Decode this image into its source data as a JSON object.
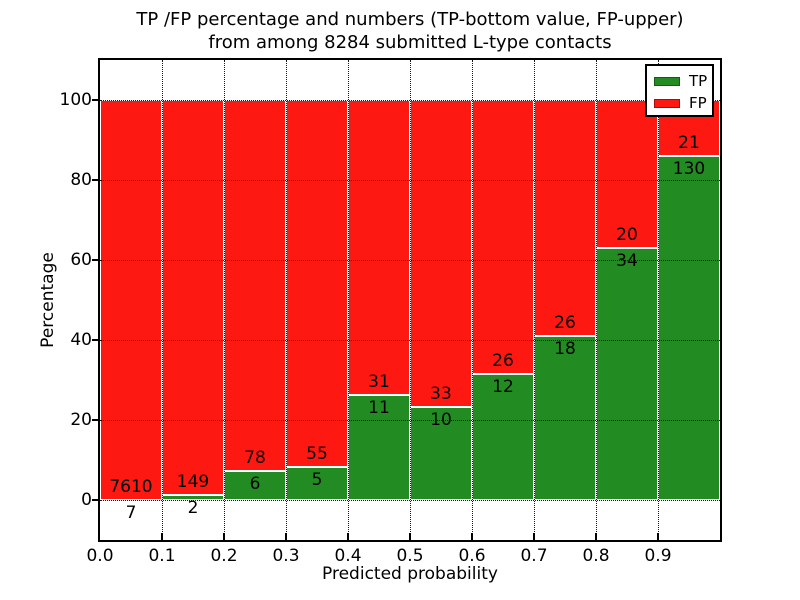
{
  "title": {
    "line1": "TP /FP percentage and numbers (TP-bottom value, FP-upper)",
    "line2": "from among 8284 submitted L-type contacts"
  },
  "axes": {
    "xlabel": "Predicted probability",
    "ylabel": "Percentage"
  },
  "legend": [
    {
      "label": "TP",
      "color": "#228b22"
    },
    {
      "label": "FP",
      "color": "#fd1812"
    }
  ],
  "colors": {
    "tp": "#228b22",
    "fp": "#fd1812",
    "grid": "#000000",
    "bar_edge": "#ffffff"
  },
  "chart_data": {
    "type": "bar",
    "stacked": true,
    "normalized": "percent_of_bin_total",
    "title": "TP /FP percentage and numbers (TP-bottom value, FP-upper) from among 8284 submitted L-type contacts",
    "xlabel": "Predicted probability",
    "ylabel": "Percentage",
    "total_contacts": 8284,
    "bin_edges": [
      0.0,
      0.1,
      0.2,
      0.3,
      0.4,
      0.5,
      0.6,
      0.7,
      0.8,
      0.9,
      1.0
    ],
    "x_tick_labels": [
      "0.0",
      "0.1",
      "0.2",
      "0.3",
      "0.4",
      "0.5",
      "0.6",
      "0.7",
      "0.8",
      "0.9"
    ],
    "y_ticks": [
      0,
      20,
      40,
      60,
      80,
      100
    ],
    "xlim": [
      0.0,
      1.0
    ],
    "ylim": [
      -10,
      110
    ],
    "grid": true,
    "legend_position": "upper right",
    "series": [
      {
        "name": "TP",
        "color": "#228b22",
        "counts": [
          7,
          2,
          6,
          5,
          11,
          10,
          12,
          18,
          34,
          130
        ]
      },
      {
        "name": "FP",
        "color": "#fd1812",
        "counts": [
          7610,
          149,
          78,
          55,
          31,
          33,
          26,
          26,
          20,
          21
        ]
      }
    ],
    "tp_percent_per_bin": [
      0.09,
      1.32,
      7.14,
      8.33,
      26.19,
      23.26,
      31.58,
      40.91,
      62.96,
      86.09
    ]
  }
}
